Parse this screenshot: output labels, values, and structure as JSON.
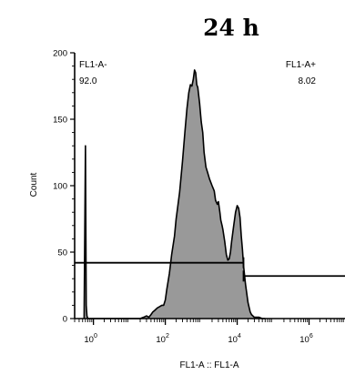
{
  "chart_data": {
    "type": "area",
    "title": "24 h",
    "xlabel": "FL1-A :: FL1-A",
    "ylabel": "Count",
    "x_scale": "log",
    "xlim": [
      0.3,
      10000000
    ],
    "ylim": [
      0,
      200
    ],
    "y_ticks": [
      0,
      50,
      100,
      150,
      200
    ],
    "y_tick_labels": [
      "0",
      "50",
      "100",
      "150",
      "200"
    ],
    "x_ticks": [
      1,
      100,
      10000,
      1000000
    ],
    "x_tick_labels": [
      {
        "base": "10",
        "exp": "0"
      },
      {
        "base": "10",
        "exp": "2"
      },
      {
        "base": "10",
        "exp": "4"
      },
      {
        "base": "10",
        "exp": "6"
      }
    ],
    "fill_color": "#999999",
    "line_color": "#000000",
    "series": [
      {
        "x": [
          0.55,
          0.6,
          0.63,
          0.66,
          0.7,
          0.8,
          2,
          5,
          10,
          15,
          20,
          25,
          30,
          35,
          40,
          45,
          50,
          60,
          70,
          80,
          90,
          100,
          110,
          130,
          150,
          180,
          200,
          250,
          300,
          350,
          400,
          450,
          500,
          550,
          600,
          650,
          700,
          750,
          800,
          900,
          1000,
          1100,
          1200,
          1350,
          1500,
          1700,
          2000,
          2300,
          2500,
          2800,
          3000,
          3300,
          3500,
          3800,
          4000,
          4500,
          5000,
          5500,
          6000,
          6500,
          7000,
          8000,
          9000,
          10000,
          11000,
          12000,
          13000,
          14000,
          15000,
          17000,
          20000,
          23000,
          25000,
          30000,
          40000,
          50000,
          60000
        ],
        "y": [
          0,
          130,
          10,
          2,
          0,
          0,
          0,
          0,
          0,
          0,
          0,
          1,
          2,
          1,
          3,
          5,
          6,
          8,
          9,
          10,
          10,
          14,
          22,
          34,
          48,
          62,
          75,
          95,
          118,
          140,
          158,
          170,
          176,
          175,
          180,
          187,
          185,
          176,
          174,
          162,
          148,
          140,
          125,
          114,
          110,
          105,
          100,
          96,
          89,
          86,
          88,
          80,
          74,
          70,
          67,
          58,
          48,
          44,
          45,
          50,
          58,
          70,
          80,
          85,
          83,
          76,
          62,
          52,
          40,
          26,
          12,
          5,
          3,
          1,
          1,
          0,
          0
        ]
      }
    ],
    "gates": [
      {
        "name": "FL1-A-",
        "percent": "92.0",
        "x_range": [
          0.3,
          15000
        ],
        "y_level": 42
      },
      {
        "name": "FL1-A+",
        "percent": "8.02",
        "x_range": [
          15000,
          10000000
        ],
        "y_level": 32
      }
    ]
  }
}
